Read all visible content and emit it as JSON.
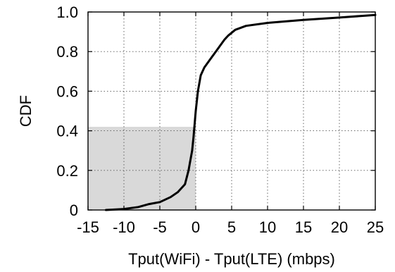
{
  "chart_data": {
    "type": "line",
    "xlabel": "Tput(WiFi) - Tput(LTE) (mbps)",
    "ylabel": "CDF",
    "xlim": [
      -15,
      25
    ],
    "ylim": [
      0,
      1
    ],
    "x_ticks": [
      -15,
      -10,
      -5,
      0,
      5,
      10,
      15,
      20,
      25
    ],
    "y_ticks": [
      0,
      0.2,
      0.4,
      0.6,
      0.8,
      1.0
    ],
    "x_tick_labels": [
      "-15",
      "-10",
      "-5",
      "0",
      "5",
      "10",
      "15",
      "20",
      "25"
    ],
    "y_tick_labels": [
      "0",
      "0.2",
      "0.4",
      "0.6",
      "0.8",
      "1.0"
    ],
    "grid": true,
    "shaded_region": {
      "x": [
        -15,
        0
      ],
      "y": [
        0,
        0.42
      ],
      "color": "#d9d9d9"
    },
    "series": [
      {
        "color": "#000000",
        "x": [
          -12.5,
          -10,
          -8,
          -6.5,
          -5,
          -3.5,
          -2.5,
          -1.5,
          -1.0,
          -0.8,
          -0.5,
          -0.3,
          0,
          0.3,
          0.7,
          1.2,
          2.0,
          3.0,
          4.0,
          4.5,
          5.5,
          7.0,
          10.0,
          15.0,
          20.0,
          25.0
        ],
        "y": [
          0.0,
          0.005,
          0.015,
          0.03,
          0.04,
          0.065,
          0.09,
          0.13,
          0.2,
          0.24,
          0.3,
          0.37,
          0.5,
          0.6,
          0.68,
          0.72,
          0.76,
          0.81,
          0.86,
          0.88,
          0.91,
          0.93,
          0.945,
          0.96,
          0.972,
          0.985
        ]
      }
    ]
  }
}
